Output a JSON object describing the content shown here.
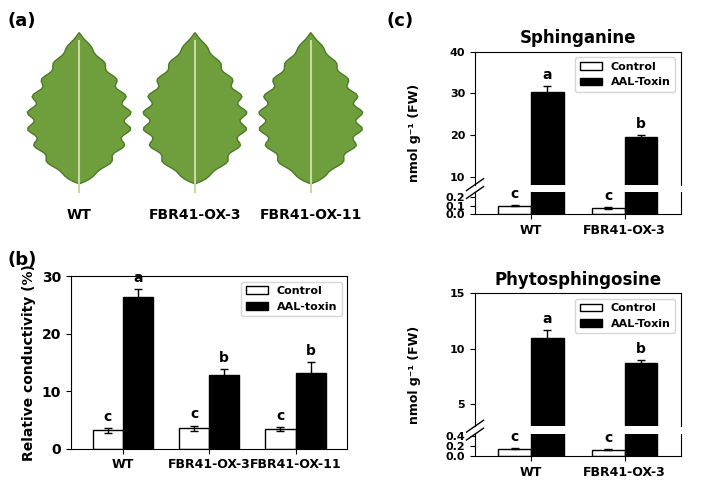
{
  "photo_panel": {
    "label": "(a)",
    "captions": [
      "WT",
      "FBR41-OX-3",
      "FBR41-OX-11"
    ]
  },
  "chart_data": [
    {
      "type": "bar",
      "annotations": [
        "(b)"
      ],
      "y_label": "Relative conductivity (%)",
      "categories": [
        "WT",
        "FBR41-OX-3",
        "FBR41-OX-11"
      ],
      "ylim": [
        0,
        30
      ],
      "yticks": [
        0,
        10,
        20,
        30
      ],
      "legend": "upper right",
      "series": [
        {
          "name": "Control",
          "color": "#ffffff",
          "values": [
            3.2,
            3.5,
            3.4
          ],
          "error": [
            0.4,
            0.5,
            0.3
          ],
          "letters": [
            "c",
            "c",
            "c"
          ]
        },
        {
          "name": "AAL-toxin",
          "color": "#000000",
          "values": [
            26.4,
            12.8,
            13.2
          ],
          "error": [
            1.4,
            1.1,
            1.9
          ],
          "letters": [
            "a",
            "b",
            "b"
          ]
        }
      ]
    },
    {
      "type": "bar",
      "annotations": [
        "(c)"
      ],
      "title": "Sphinganine",
      "y_label": "nmol g⁻¹ (FW)",
      "categories": [
        "WT",
        "FBR41-OX-3"
      ],
      "legend": "upper right",
      "segments": [
        {
          "ylim": [
            0.0,
            0.25
          ],
          "yticks": [
            0.0,
            0.1,
            0.2
          ]
        },
        {
          "ylim": [
            8,
            40
          ],
          "yticks": [
            10,
            20,
            30,
            40
          ]
        }
      ],
      "series": [
        {
          "name": "Control",
          "color": "#ffffff",
          "values": [
            0.1,
            0.07
          ],
          "error": [
            0.01,
            0.01
          ],
          "letters": [
            "c",
            "c"
          ]
        },
        {
          "name": "AAL-Toxin",
          "color": "#000000",
          "values": [
            30.3,
            19.4
          ],
          "error": [
            1.5,
            0.6
          ],
          "letters": [
            "a",
            "b"
          ]
        }
      ]
    },
    {
      "type": "bar",
      "title": "Phytosphingosine",
      "y_label": "nmol g⁻¹ (FW)",
      "categories": [
        "WT",
        "FBR41-OX-3"
      ],
      "legend": "upper right",
      "segments": [
        {
          "ylim": [
            0.0,
            0.45
          ],
          "yticks": [
            0.0,
            0.2,
            0.4
          ]
        },
        {
          "ylim": [
            3,
            15
          ],
          "yticks": [
            5,
            10,
            15
          ]
        }
      ],
      "series": [
        {
          "name": "Control",
          "color": "#ffffff",
          "values": [
            0.15,
            0.13
          ],
          "error": [
            0.01,
            0.01
          ],
          "letters": [
            "c",
            "c"
          ]
        },
        {
          "name": "AAL-Toxin",
          "color": "#000000",
          "values": [
            11.0,
            8.7
          ],
          "error": [
            0.7,
            0.25
          ],
          "letters": [
            "a",
            "b"
          ]
        }
      ]
    }
  ]
}
